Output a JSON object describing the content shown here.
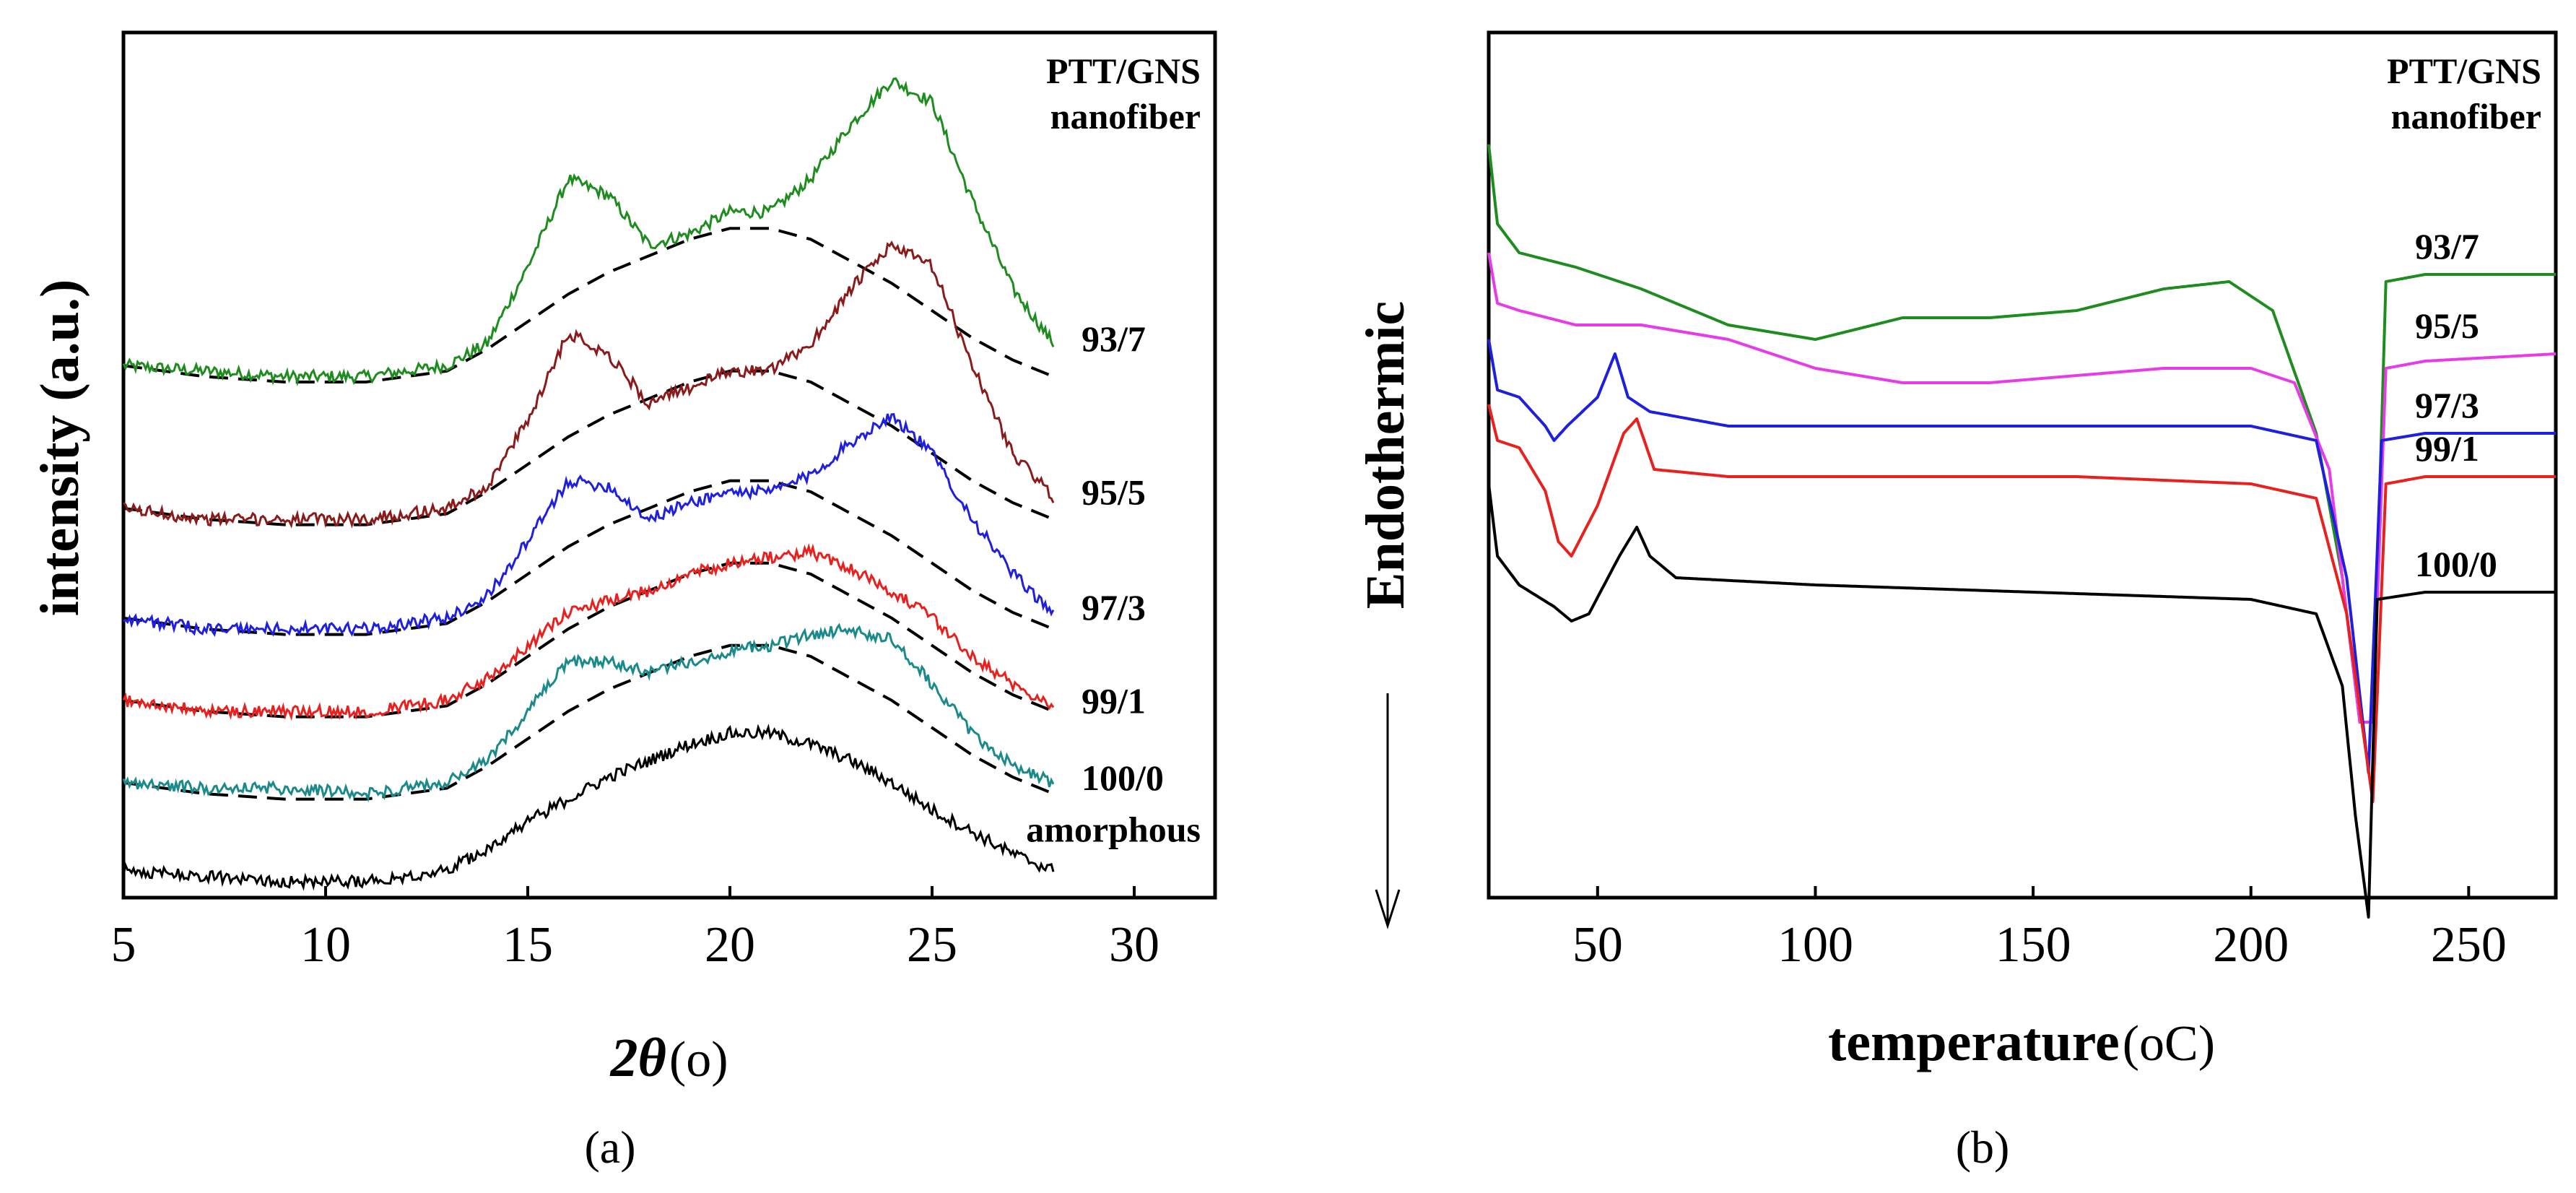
{
  "figure": {
    "panel_a_label": "(a)",
    "panel_b_label": "(b)"
  },
  "chart_data": [
    {
      "type": "line",
      "panel": "(a)",
      "title": "",
      "xlabel_symbol": "2θ",
      "xlabel_unit": "(o)",
      "ylabel": "intensity (a.u.)",
      "xlim": [
        5,
        32
      ],
      "xticks": [
        "5",
        "10",
        "15",
        "20",
        "25",
        "30"
      ],
      "legend_header": [
        "PTT/GNS",
        "nanofiber"
      ],
      "series": [
        {
          "name": "93/7",
          "color": "#1e8c1e",
          "offset": 0.86,
          "x": [
            5,
            7,
            9,
            11,
            13,
            14,
            15,
            16,
            17,
            18,
            19,
            20,
            21,
            22,
            23,
            24,
            25,
            26,
            27,
            28
          ],
          "values": [
            0.02,
            0.01,
            0.0,
            0.0,
            0.02,
            0.06,
            0.2,
            0.36,
            0.33,
            0.24,
            0.26,
            0.3,
            0.3,
            0.36,
            0.46,
            0.54,
            0.5,
            0.32,
            0.16,
            0.06
          ],
          "baseline": [
            0.02,
            0.0,
            -0.01,
            -0.01,
            0.01,
            0.05,
            0.1,
            0.15,
            0.19,
            0.22,
            0.25,
            0.27,
            0.27,
            0.25,
            0.21,
            0.17,
            0.12,
            0.07,
            0.03,
            0.0
          ]
        },
        {
          "name": "95/5",
          "color": "#8b1a1a",
          "offset": 0.6,
          "x": [
            5,
            7,
            9,
            11,
            13,
            14,
            15,
            16,
            17,
            18,
            19,
            20,
            21,
            22,
            23,
            24,
            25,
            26,
            27,
            28
          ],
          "values": [
            0.02,
            0.0,
            0.0,
            0.0,
            0.02,
            0.06,
            0.18,
            0.34,
            0.3,
            0.21,
            0.24,
            0.27,
            0.27,
            0.32,
            0.42,
            0.5,
            0.46,
            0.28,
            0.12,
            0.04
          ],
          "baseline": [
            0.02,
            0.0,
            -0.01,
            -0.01,
            0.01,
            0.05,
            0.1,
            0.15,
            0.19,
            0.22,
            0.25,
            0.27,
            0.27,
            0.25,
            0.21,
            0.17,
            0.12,
            0.07,
            0.03,
            0.0
          ]
        },
        {
          "name": "97/3",
          "color": "#1f1fe0",
          "offset": 0.4,
          "x": [
            5,
            7,
            9,
            11,
            13,
            14,
            15,
            16,
            17,
            18,
            19,
            20,
            21,
            22,
            23,
            24,
            25,
            26,
            27,
            28
          ],
          "values": [
            0.02,
            0.0,
            0.0,
            0.0,
            0.02,
            0.06,
            0.16,
            0.27,
            0.26,
            0.2,
            0.23,
            0.25,
            0.25,
            0.28,
            0.34,
            0.39,
            0.32,
            0.2,
            0.1,
            0.03
          ],
          "baseline": [
            0.02,
            0.0,
            -0.01,
            -0.01,
            0.01,
            0.05,
            0.1,
            0.15,
            0.19,
            0.22,
            0.25,
            0.27,
            0.27,
            0.25,
            0.21,
            0.17,
            0.12,
            0.07,
            0.03,
            0.0
          ]
        },
        {
          "name": "99/1",
          "color": "#e8211f",
          "offset": 0.25,
          "x": [
            5,
            7,
            9,
            11,
            13,
            14,
            15,
            16,
            17,
            18,
            19,
            20,
            21,
            22,
            23,
            24,
            25,
            26,
            27,
            28
          ],
          "values": [
            0.02,
            0.0,
            0.0,
            0.0,
            0.02,
            0.06,
            0.12,
            0.18,
            0.2,
            0.22,
            0.25,
            0.27,
            0.28,
            0.29,
            0.26,
            0.22,
            0.17,
            0.1,
            0.05,
            0.01
          ],
          "baseline": [
            0.02,
            0.0,
            -0.01,
            -0.01,
            0.01,
            0.05,
            0.1,
            0.15,
            0.19,
            0.22,
            0.25,
            0.27,
            0.27,
            0.25,
            0.21,
            0.17,
            0.12,
            0.07,
            0.03,
            0.0
          ]
        },
        {
          "name": "100/0",
          "color": "#1a8a8a",
          "offset": 0.1,
          "x": [
            5,
            7,
            9,
            11,
            13,
            14,
            15,
            16,
            17,
            18,
            19,
            20,
            21,
            22,
            23,
            24,
            25,
            26,
            27,
            28
          ],
          "values": [
            0.02,
            0.01,
            0.01,
            0.0,
            0.02,
            0.06,
            0.15,
            0.24,
            0.24,
            0.22,
            0.24,
            0.26,
            0.27,
            0.29,
            0.3,
            0.28,
            0.2,
            0.11,
            0.05,
            0.02
          ],
          "baseline": [
            0.02,
            0.0,
            -0.01,
            -0.01,
            0.01,
            0.05,
            0.1,
            0.15,
            0.19,
            0.22,
            0.25,
            0.27,
            0.27,
            0.25,
            0.21,
            0.17,
            0.12,
            0.07,
            0.03,
            0.0
          ]
        },
        {
          "name": "amorphous",
          "color": "#000000",
          "offset": -0.04,
          "x": [
            5,
            7,
            9,
            11,
            13,
            14,
            15,
            16,
            17,
            18,
            19,
            20,
            21,
            22,
            23,
            24,
            25,
            26,
            27,
            28
          ],
          "values": [
            0.0,
            -0.01,
            -0.02,
            -0.02,
            0.0,
            0.04,
            0.09,
            0.13,
            0.17,
            0.2,
            0.23,
            0.25,
            0.25,
            0.23,
            0.2,
            0.16,
            0.11,
            0.07,
            0.03,
            0.0
          ],
          "baseline": null
        }
      ]
    },
    {
      "type": "line",
      "panel": "(b)",
      "title": "",
      "xlabel": "temperature",
      "xlabel_unit": "(oC)",
      "ylabel": "Endothermic",
      "xlim": [
        25,
        270
      ],
      "xticks": [
        "50",
        "100",
        "150",
        "200",
        "250"
      ],
      "legend_header": [
        "PTT/GNS",
        "nanofiber"
      ],
      "series": [
        {
          "name": "93/7",
          "color": "#1e8c1e",
          "x": [
            25,
            27,
            32,
            45,
            60,
            80,
            100,
            120,
            140,
            160,
            180,
            195,
            205,
            215,
            221,
            225,
            228,
            231,
            240,
            270
          ],
          "values": [
            0.85,
            0.74,
            0.7,
            0.68,
            0.65,
            0.6,
            0.58,
            0.61,
            0.61,
            0.62,
            0.65,
            0.66,
            0.62,
            0.45,
            0.25,
            0.05,
            0.05,
            0.66,
            0.67,
            0.67
          ]
        },
        {
          "name": "95/5",
          "color": "#e83be8",
          "x": [
            25,
            27,
            32,
            45,
            60,
            80,
            100,
            120,
            140,
            160,
            180,
            200,
            210,
            218,
            222,
            225,
            228,
            231,
            240,
            270
          ],
          "values": [
            0.7,
            0.63,
            0.62,
            0.6,
            0.6,
            0.58,
            0.54,
            0.52,
            0.52,
            0.53,
            0.54,
            0.54,
            0.52,
            0.4,
            0.2,
            0.05,
            0.05,
            0.54,
            0.55,
            0.56
          ]
        },
        {
          "name": "97/3",
          "color": "#1f1fe0",
          "x": [
            25,
            27,
            32,
            38,
            40,
            43,
            50,
            54,
            57,
            62,
            80,
            120,
            160,
            200,
            215,
            222,
            227,
            230,
            240,
            270
          ],
          "values": [
            0.58,
            0.51,
            0.5,
            0.46,
            0.44,
            0.46,
            0.5,
            0.56,
            0.5,
            0.48,
            0.46,
            0.46,
            0.46,
            0.46,
            0.44,
            0.25,
            -0.02,
            0.44,
            0.45,
            0.45
          ]
        },
        {
          "name": "99/1",
          "color": "#e8211f",
          "x": [
            25,
            27,
            32,
            38,
            41,
            44,
            50,
            56,
            59,
            63,
            80,
            120,
            160,
            200,
            215,
            222,
            228,
            231,
            240,
            270
          ],
          "values": [
            0.49,
            0.44,
            0.43,
            0.37,
            0.3,
            0.28,
            0.35,
            0.45,
            0.47,
            0.4,
            0.39,
            0.39,
            0.39,
            0.38,
            0.36,
            0.2,
            -0.06,
            0.38,
            0.39,
            0.39
          ]
        },
        {
          "name": "100/0",
          "color": "#000000",
          "x": [
            25,
            27,
            32,
            40,
            44,
            48,
            55,
            59,
            62,
            68,
            100,
            150,
            200,
            215,
            221,
            224,
            227,
            229,
            240,
            270
          ],
          "values": [
            0.38,
            0.28,
            0.24,
            0.21,
            0.19,
            0.2,
            0.28,
            0.32,
            0.28,
            0.25,
            0.24,
            0.23,
            0.22,
            0.2,
            0.1,
            -0.08,
            -0.22,
            0.22,
            0.23,
            0.23
          ]
        }
      ]
    }
  ]
}
